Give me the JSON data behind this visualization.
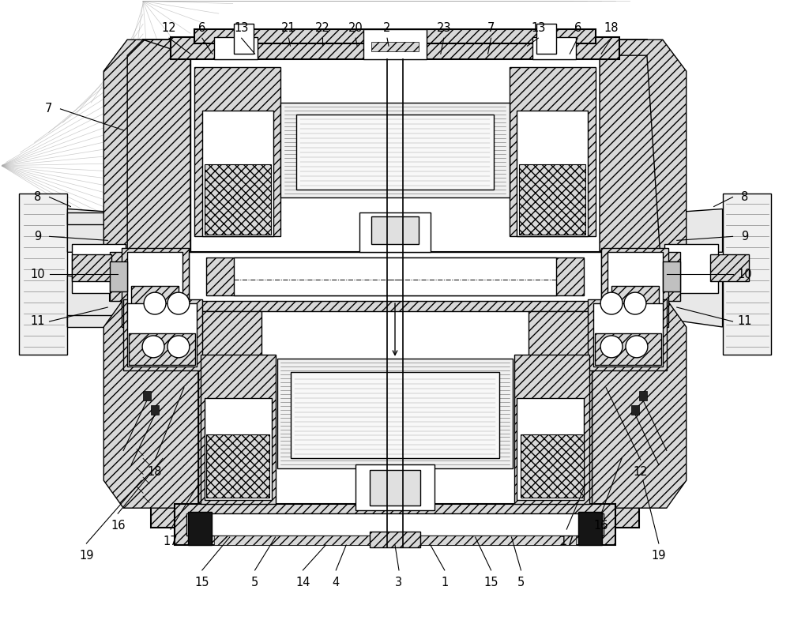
{
  "bg_color": "#ffffff",
  "line_color": "#000000",
  "fig_width": 10.0,
  "fig_height": 8.09,
  "top_labels": [
    [
      "12",
      213,
      762,
      240,
      742
    ],
    [
      "6",
      255,
      762,
      268,
      742
    ],
    [
      "13",
      305,
      762,
      322,
      742
    ],
    [
      "21",
      365,
      762,
      367,
      752
    ],
    [
      "22",
      408,
      762,
      408,
      752
    ],
    [
      "20",
      450,
      762,
      452,
      752
    ],
    [
      "2",
      490,
      762,
      492,
      752
    ],
    [
      "23",
      562,
      762,
      558,
      742
    ],
    [
      "7",
      622,
      762,
      618,
      742
    ],
    [
      "13",
      682,
      762,
      668,
      752
    ],
    [
      "6",
      732,
      762,
      722,
      742
    ],
    [
      "18",
      775,
      762,
      762,
      742
    ]
  ],
  "left_labels": [
    [
      "7",
      60,
      672,
      155,
      645
    ],
    [
      "8",
      46,
      560,
      88,
      548
    ],
    [
      "9",
      46,
      510,
      135,
      505
    ],
    [
      "10",
      46,
      462,
      148,
      462
    ],
    [
      "11",
      46,
      402,
      135,
      420
    ]
  ],
  "right_labels": [
    [
      "8",
      944,
      560,
      905,
      548
    ],
    [
      "9",
      944,
      510,
      858,
      505
    ],
    [
      "10",
      944,
      462,
      845,
      462
    ],
    [
      "11",
      944,
      402,
      858,
      420
    ]
  ],
  "bottom_labels": [
    [
      "19",
      108,
      112,
      178,
      200
    ],
    [
      "16",
      148,
      150,
      205,
      228
    ],
    [
      "17",
      215,
      130,
      250,
      195
    ],
    [
      "18",
      195,
      218,
      232,
      318
    ],
    [
      "15",
      255,
      78,
      290,
      128
    ],
    [
      "5",
      322,
      78,
      348,
      128
    ],
    [
      "14",
      383,
      78,
      412,
      118
    ],
    [
      "4",
      425,
      78,
      438,
      118
    ],
    [
      "3",
      505,
      78,
      500,
      118
    ],
    [
      "1",
      563,
      78,
      545,
      118
    ],
    [
      "15",
      622,
      78,
      602,
      128
    ],
    [
      "5",
      660,
      78,
      648,
      128
    ],
    [
      "17",
      718,
      130,
      742,
      195
    ],
    [
      "16",
      762,
      150,
      788,
      228
    ],
    [
      "19",
      835,
      112,
      815,
      200
    ],
    [
      "12",
      812,
      218,
      768,
      318
    ]
  ]
}
